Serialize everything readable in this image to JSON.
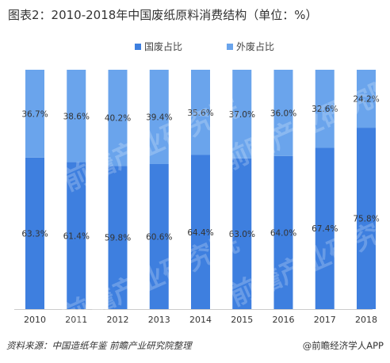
{
  "title": "图表2：2010-2018年中国废纸原料消费结构（单位：%）",
  "source": "资料来源：中国造纸年鉴 前瞻产业研究院整理",
  "brand": "@前瞻经济学人APP",
  "watermark": "前瞻产业研究院",
  "colors": {
    "domestic": "#3e7fdf",
    "imported": "#6aa4ec"
  },
  "chart_data": {
    "type": "bar",
    "stacked": true,
    "categories": [
      "2010",
      "2011",
      "2012",
      "2013",
      "2014",
      "2015",
      "2016",
      "2017",
      "2018"
    ],
    "series": [
      {
        "name": "国废占比",
        "values": [
          63.3,
          61.4,
          59.8,
          60.6,
          64.4,
          63.0,
          64.0,
          67.4,
          75.8
        ],
        "labels": [
          "63.3%",
          "61.4%",
          "59.8%",
          "60.6%",
          "64.4%",
          "63.0%",
          "64.0%",
          "67.4%",
          "75.8%"
        ]
      },
      {
        "name": "外废占比",
        "values": [
          36.7,
          38.6,
          40.2,
          39.4,
          35.6,
          37.0,
          36.0,
          32.6,
          24.2
        ],
        "labels": [
          "36.7%",
          "38.6%",
          "40.2%",
          "39.4%",
          "35.6%",
          "37.0%",
          "36.0%",
          "32.6%",
          "24.2%"
        ]
      }
    ],
    "ylim": [
      0,
      100
    ],
    "legend": "top",
    "grid": false
  }
}
